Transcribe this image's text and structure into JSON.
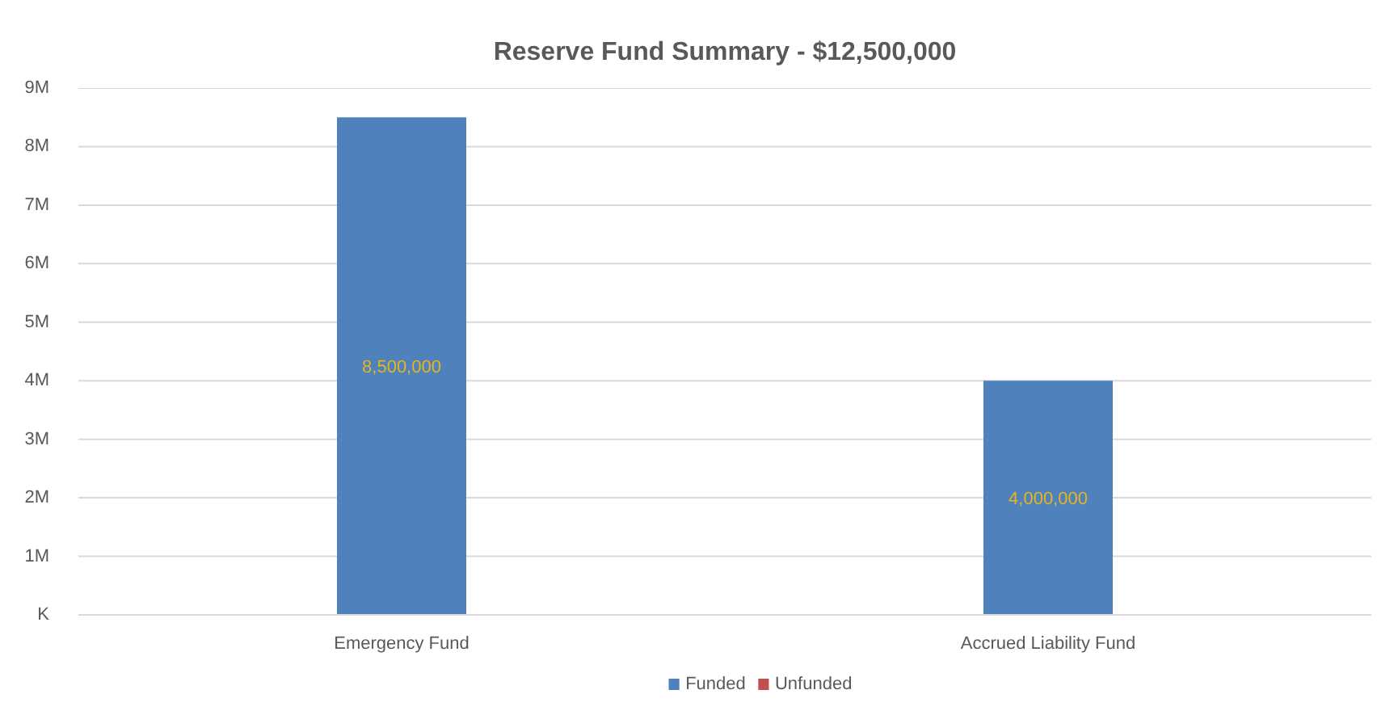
{
  "chart_data": {
    "type": "bar",
    "title": "Reserve Fund Summary - $12,500,000",
    "categories": [
      "Emergency Fund",
      "Accrued Liability Fund"
    ],
    "series": [
      {
        "name": "Funded",
        "color": "#4f81bd",
        "values": [
          8500000,
          4000000
        ],
        "value_labels": [
          "8,500,000",
          "4,000,000"
        ]
      },
      {
        "name": "Unfunded",
        "color": "#c0504d",
        "values": [
          null,
          null
        ]
      }
    ],
    "stacked": true,
    "ylim": [
      0,
      9000000
    ],
    "yticks": [
      {
        "value": 0,
        "label": "K"
      },
      {
        "value": 1000000,
        "label": "1M"
      },
      {
        "value": 2000000,
        "label": "2M"
      },
      {
        "value": 3000000,
        "label": "3M"
      },
      {
        "value": 4000000,
        "label": "4M"
      },
      {
        "value": 5000000,
        "label": "5M"
      },
      {
        "value": 6000000,
        "label": "6M"
      },
      {
        "value": 7000000,
        "label": "7M"
      },
      {
        "value": 8000000,
        "label": "8M"
      },
      {
        "value": 9000000,
        "label": "9M"
      }
    ],
    "grid": "y",
    "legend": "bottom"
  }
}
